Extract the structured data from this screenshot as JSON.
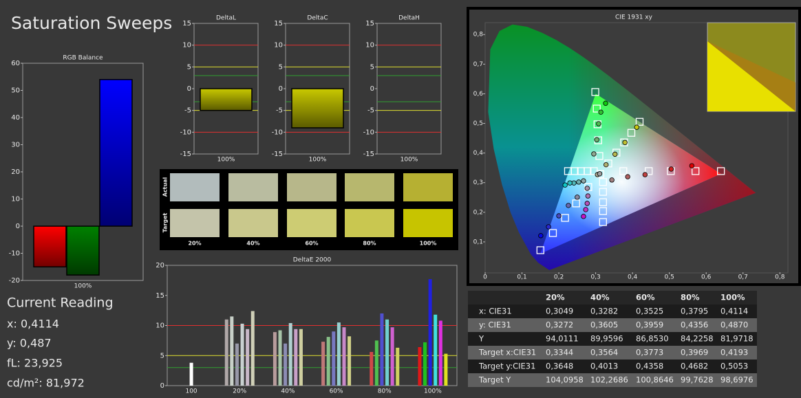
{
  "title": "Saturation Sweeps",
  "current_reading": {
    "title": "Current Reading",
    "lines": [
      "x: 0,4114",
      "y: 0,487",
      "fL: 23,925",
      "cd/m²: 81,972"
    ]
  },
  "chart_data": [
    {
      "type": "bar",
      "title": "RGB Balance",
      "categories": [
        "100%"
      ],
      "series": [
        {
          "color": "#ff0000",
          "values": [
            -15
          ]
        },
        {
          "color": "#008000",
          "values": [
            -18
          ]
        },
        {
          "color": "#0000ff",
          "values": [
            54
          ]
        }
      ],
      "ylim": [
        -20,
        60
      ],
      "yticks": [
        -20,
        -10,
        0,
        10,
        20,
        30,
        40,
        50,
        60
      ]
    },
    {
      "type": "bar",
      "title": "DeltaL",
      "categories": [
        "100%"
      ],
      "values": [
        -5
      ],
      "color": "#c8c800",
      "ylim": [
        -15,
        15
      ],
      "yticks": [
        -15,
        -10,
        -5,
        0,
        5,
        10,
        15
      ],
      "reference_lines": [
        {
          "value": 10,
          "color": "#e03030"
        },
        {
          "value": -10,
          "color": "#e03030"
        },
        {
          "value": 5,
          "color": "#e0e030"
        },
        {
          "value": -5,
          "color": "#e0e030"
        },
        {
          "value": 3,
          "color": "#30a030"
        },
        {
          "value": -3,
          "color": "#30a030"
        }
      ]
    },
    {
      "type": "bar",
      "title": "DeltaC",
      "categories": [
        "100%"
      ],
      "values": [
        -9
      ],
      "color": "#c8c800",
      "ylim": [
        -15,
        15
      ],
      "yticks": [
        -15,
        -10,
        -5,
        0,
        5,
        10,
        15
      ],
      "reference_lines": [
        {
          "value": 10,
          "color": "#e03030"
        },
        {
          "value": -10,
          "color": "#e03030"
        },
        {
          "value": 5,
          "color": "#e0e030"
        },
        {
          "value": -5,
          "color": "#e0e030"
        },
        {
          "value": 3,
          "color": "#30a030"
        },
        {
          "value": -3,
          "color": "#30a030"
        }
      ]
    },
    {
      "type": "bar",
      "title": "DeltaH",
      "categories": [
        "100%"
      ],
      "values": [
        0
      ],
      "color": "#000000",
      "ylim": [
        -15,
        15
      ],
      "yticks": [
        -15,
        -10,
        -5,
        0,
        5,
        10,
        15
      ],
      "reference_lines": [
        {
          "value": 10,
          "color": "#e03030"
        },
        {
          "value": -10,
          "color": "#e03030"
        },
        {
          "value": 5,
          "color": "#e0e030"
        },
        {
          "value": -5,
          "color": "#e0e030"
        },
        {
          "value": 3,
          "color": "#30a030"
        },
        {
          "value": -3,
          "color": "#30a030"
        }
      ]
    },
    {
      "type": "bar",
      "title": "DeltaE 2000",
      "categories": [
        "100",
        "20%",
        "40%",
        "60%",
        "80%",
        "100%"
      ],
      "series": [
        {
          "colors": [
            null,
            "#b0a8a8",
            "#b89c9c",
            "#c07878",
            "#d04848",
            "#e01818"
          ],
          "values": [
            null,
            11,
            8.9,
            7.3,
            5.6,
            6.4
          ]
        },
        {
          "colors": [
            null,
            "#c8d0c8",
            "#a8c4a8",
            "#88c088",
            "#50c050",
            "#20c020"
          ],
          "values": [
            null,
            11.5,
            9.2,
            8.1,
            7.5,
            7.2
          ]
        },
        {
          "colors": [
            null,
            "#9898a8",
            "#8c8cb4",
            "#7878c0",
            "#5050d0",
            "#2020e0"
          ],
          "values": [
            null,
            7,
            7,
            9,
            12,
            17.7
          ]
        },
        {
          "colors": [
            null,
            "#c8d0d0",
            "#b0d0d0",
            "#98d0d0",
            "#70d0d0",
            "#40e0e0"
          ],
          "values": [
            null,
            10.3,
            10.4,
            10.5,
            11,
            11.8
          ]
        },
        {
          "colors": [
            null,
            "#c8b8c8",
            "#c8a0c8",
            "#c888c8",
            "#d060d0",
            "#e030e0"
          ],
          "values": [
            null,
            9.4,
            9.4,
            9.7,
            9.7,
            10.8
          ]
        },
        {
          "colors": [
            null,
            "#d0d0b8",
            "#d0d0a0",
            "#d0d088",
            "#d0d060",
            "#e0e020"
          ],
          "values": [
            null,
            12.4,
            9.4,
            8.2,
            6.3,
            5.3
          ]
        },
        {
          "colors": [
            "#ffffff",
            null,
            null,
            null,
            null,
            null
          ],
          "values": [
            3.8,
            null,
            null,
            null,
            null,
            null
          ]
        }
      ],
      "ylim": [
        0,
        20
      ],
      "yticks": [
        0,
        5,
        10,
        15,
        20
      ],
      "reference_lines": [
        {
          "value": 10,
          "color": "#e03030"
        },
        {
          "value": 5,
          "color": "#e0e030"
        },
        {
          "value": 3,
          "color": "#30a030"
        }
      ]
    },
    {
      "type": "scatter",
      "title": "CIE 1931 xy",
      "xlim": [
        0,
        0.82
      ],
      "ylim": [
        0,
        0.84
      ],
      "xticks": [
        0,
        {
          "value": 0.1,
          "label": "0,1"
        },
        {
          "value": 0.2,
          "label": "0,2"
        },
        {
          "value": 0.3,
          "label": "0,3"
        },
        {
          "value": 0.4,
          "label": "0,4"
        },
        {
          "value": 0.5,
          "label": "0,5"
        },
        {
          "value": 0.6,
          "label": "0,6"
        },
        {
          "value": 0.7,
          "label": "0,7"
        },
        {
          "value": 0.8,
          "label": "0,8"
        }
      ],
      "yticks": [
        {
          "value": 0.1,
          "label": "0,1"
        },
        {
          "value": 0.2,
          "label": "0,2"
        },
        {
          "value": 0.3,
          "label": "0,3"
        },
        {
          "value": 0.4,
          "label": "0,4"
        },
        {
          "value": 0.5,
          "label": "0,5"
        },
        {
          "value": 0.6,
          "label": "0,6"
        },
        {
          "value": 0.7,
          "label": "0,7"
        },
        {
          "value": 0.8,
          "label": "0,8"
        }
      ],
      "series": [
        {
          "marker": "square",
          "color": "#ffffff",
          "x": [
            0.375,
            0.444,
            0.504,
            0.571,
            0.64,
            0.31,
            0.307,
            0.305,
            0.303,
            0.299,
            0.28,
            0.247,
            0.217,
            0.184,
            0.15,
            0.295,
            0.278,
            0.26,
            0.243,
            0.225,
            0.32,
            0.32,
            0.32,
            0.32,
            0.32,
            0.3344,
            0.3564,
            0.3773,
            0.3969,
            0.4193,
            0.3127
          ],
          "values": [
            0.339,
            0.339,
            0.339,
            0.339,
            0.339,
            0.39,
            0.443,
            0.497,
            0.55,
            0.606,
            0.285,
            0.23,
            0.181,
            0.13,
            0.072,
            0.339,
            0.339,
            0.339,
            0.339,
            0.339,
            0.302,
            0.269,
            0.234,
            0.204,
            0.167,
            0.3648,
            0.4013,
            0.4358,
            0.4682,
            0.5053,
            0.329
          ]
        },
        {
          "marker": "circle",
          "colors": [
            "#a08080",
            "#b06060",
            "#c04040",
            "#d02020",
            "#e00000",
            "#90a890",
            "#70b070",
            "#50b850",
            "#30c030",
            "#10c810",
            "#8888a0",
            "#6868b0",
            "#4848c0",
            "#2828d0",
            "#0808e0",
            "#90a8a8",
            "#70b0b0",
            "#50b8b8",
            "#30c0c0",
            "#10c8c8",
            "#a890a8",
            "#b070b0",
            "#b850b8",
            "#c030c0",
            "#c810c8",
            "#a8a890",
            "#b0b070",
            "#b8b850",
            "#c0c030",
            "#c8c810",
            "#a0a0a0"
          ],
          "x": [
            0.344,
            0.387,
            0.434,
            0.505,
            0.561,
            0.295,
            0.303,
            0.308,
            0.314,
            0.327,
            0.25,
            0.226,
            0.2,
            0.172,
            0.151,
            0.267,
            0.254,
            0.241,
            0.23,
            0.217,
            0.277,
            0.279,
            0.277,
            0.273,
            0.267,
            0.3049,
            0.3282,
            0.3525,
            0.3795,
            0.4114,
            0.311
          ],
          "values": [
            0.309,
            0.32,
            0.327,
            0.346,
            0.357,
            0.397,
            0.445,
            0.499,
            0.538,
            0.568,
            0.251,
            0.223,
            0.188,
            0.151,
            0.121,
            0.306,
            0.302,
            0.299,
            0.299,
            0.292,
            0.281,
            0.255,
            0.23,
            0.209,
            0.186,
            0.3272,
            0.3605,
            0.3959,
            0.4356,
            0.487,
            0.33
          ]
        }
      ]
    }
  ],
  "swatches": {
    "row_labels": [
      "Actual",
      "Target"
    ],
    "columns": [
      "20%",
      "40%",
      "60%",
      "80%",
      "100%"
    ],
    "colors": [
      [
        "#b2bcbc",
        "#b9bca0",
        "#b7b78a",
        "#b7b76e",
        "#b6b032"
      ],
      [
        "#c4c4aa",
        "#c9c88c",
        "#cdcc73",
        "#c9c750",
        "#c7c400"
      ]
    ]
  },
  "table": {
    "header": [
      "20%",
      "40%",
      "60%",
      "80%",
      "100%"
    ],
    "rows": [
      {
        "label": "x: CIE31",
        "cells": [
          "0,3049",
          "0,3282",
          "0,3525",
          "0,3795",
          "0,4114"
        ]
      },
      {
        "label": "y: CIE31",
        "cells": [
          "0,3272",
          "0,3605",
          "0,3959",
          "0,4356",
          "0,4870"
        ]
      },
      {
        "label": "Y",
        "cells": [
          "94,0111",
          "89,9596",
          "86,8530",
          "84,2258",
          "81,9718"
        ]
      },
      {
        "label": "Target x:CIE31",
        "cells": [
          "0,3344",
          "0,3564",
          "0,3773",
          "0,3969",
          "0,4193"
        ]
      },
      {
        "label": "Target y:CIE31",
        "cells": [
          "0,3648",
          "0,4013",
          "0,4358",
          "0,4682",
          "0,5053"
        ]
      },
      {
        "label": "Target Y",
        "cells": [
          "104,0958",
          "102,2686",
          "100,8646",
          "99,7628",
          "98,6976"
        ]
      }
    ]
  }
}
